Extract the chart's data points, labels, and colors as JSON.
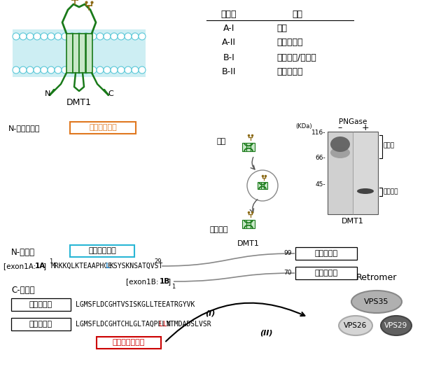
{
  "bg_color": "#ffffff",
  "table_header": [
    "异构体",
    "定位"
  ],
  "table_rows": [
    [
      "A-I",
      "质膜"
    ],
    [
      "A-II",
      "再循环内体"
    ],
    [
      "B-I",
      "晚期内体/溶酶体"
    ],
    [
      "B-II",
      "再循环内体"
    ]
  ],
  "label_DMT1": "DMT1",
  "label_N": "N",
  "label_C": "C",
  "label_glyco": "N-连接糖基化",
  "label_apical": "顶端靶定信号",
  "label_apical_color": "#e07820",
  "label_plasma": "质膜",
  "label_golgi": "高尔基体",
  "label_PNGase": "PNGase",
  "label_minus": "–",
  "label_plus": "+",
  "label_KDa": "(KDa)",
  "label_116": "116-",
  "label_66": "66-",
  "label_45": "45-",
  "label_glycosylated": "糖基化",
  "label_deglycosylated": "去糖基化",
  "label_Nterminal": "N-端区域",
  "label_plasma_signal": "质膜固定信号",
  "label_plasma_signal_color": "#29b6d5",
  "label_TM1": "跨膜结构域",
  "label_TM2": "跨膜结构域",
  "label_Cterminal": "C-端区域",
  "label_TM3": "跨膜结构域",
  "label_seq_I": "LGMSFLDCGHTVSISKGLLTEEATRGYVK",
  "label_I": "(I)",
  "label_TM4": "跨膜结构域",
  "label_seq_II_pre": "LGMSFLDCGHTCHLGLTAQPELY",
  "label_seq_II_red": "LL",
  "label_seq_II_post": "NTMDADSLVSR",
  "label_II": "(II)",
  "label_recycling": "再循环内体信号",
  "label_recycling_color": "#cc0000",
  "label_Retromer": "Retromer",
  "label_VPS35": "VPS35",
  "label_VPS26": "VPS26",
  "label_VPS29": "VPS29",
  "membrane_color": "#5bc8d8",
  "protein_color": "#1a7a1a",
  "vps35_color": "#b0b0b0",
  "vps26_color": "#d5d5d5",
  "vps29_color": "#606060"
}
